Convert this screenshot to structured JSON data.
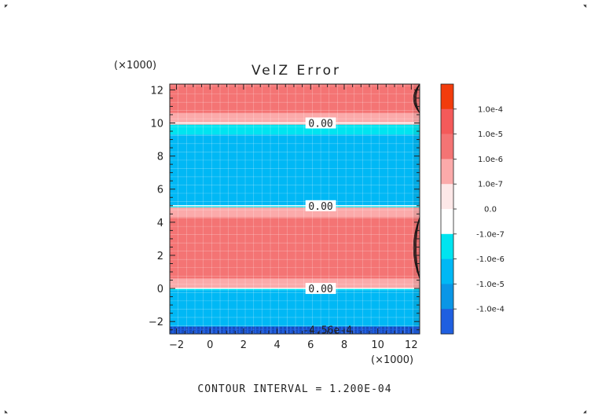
{
  "chart_data": {
    "type": "heatmap",
    "title": "VelZ Error",
    "x_multiplier_label": "(×1000)",
    "y_multiplier_label": "(×1000)",
    "xlim": [
      -2.4,
      12.5
    ],
    "ylim": [
      -2.75,
      12.35
    ],
    "x_ticks": [
      -2,
      0,
      2,
      4,
      6,
      8,
      10,
      12
    ],
    "y_ticks": [
      -2,
      0,
      2,
      4,
      6,
      8,
      10,
      12
    ],
    "x_tick_labels": [
      "−2",
      "0",
      "2",
      "4",
      "6",
      "8",
      "10",
      "12"
    ],
    "y_tick_labels": [
      "−2",
      "0",
      "2",
      "4",
      "6",
      "8",
      "10",
      "12"
    ],
    "grid": true,
    "bands": [
      {
        "y0": -2.75,
        "y1": -2.3,
        "color": "#1f5fe0"
      },
      {
        "y0": -2.3,
        "y1": -0.1,
        "color": "#00b8f5"
      },
      {
        "y0": -0.1,
        "y1": 0.0,
        "color": "#00e4f0"
      },
      {
        "y0": 0.0,
        "y1": 0.6,
        "color": "#fbaaaa"
      },
      {
        "y0": 0.6,
        "y1": 4.3,
        "color": "#f47474"
      },
      {
        "y0": 4.3,
        "y1": 4.9,
        "color": "#fbaaaa"
      },
      {
        "y0": 4.9,
        "y1": 5.0,
        "color": "#00e4f0"
      },
      {
        "y0": 5.0,
        "y1": 9.3,
        "color": "#00b8f5"
      },
      {
        "y0": 9.3,
        "y1": 9.9,
        "color": "#00e4f0"
      },
      {
        "y0": 9.9,
        "y1": 10.0,
        "color": "#fbaaaa"
      },
      {
        "y0": 10.0,
        "y1": 10.6,
        "color": "#fbaaaa"
      },
      {
        "y0": 10.6,
        "y1": 12.35,
        "color": "#f47474"
      }
    ],
    "contour_labels": [
      {
        "x": 6.6,
        "y": 10.0,
        "text": "0.00"
      },
      {
        "x": 6.6,
        "y": 5.0,
        "text": "0.00"
      },
      {
        "x": 6.6,
        "y": 0.0,
        "text": "0.00"
      },
      {
        "x": 7.0,
        "y": -2.5,
        "text": "-4.56e-4"
      }
    ],
    "colorbar": {
      "levels": [
        "1.0e-4",
        "1.0e-5",
        "1.0e-6",
        "1.0e-7",
        "0.0",
        "-1.0e-7",
        "-1.0e-6",
        "-1.0e-5",
        "-1.0e-4"
      ],
      "colors": [
        "#f23c0c",
        "#f45a5a",
        "#f47474",
        "#fbaaaa",
        "#fde8e8",
        "#ffffff",
        "#00e4f0",
        "#00b8f5",
        "#0a96e6",
        "#1f5fe0"
      ],
      "placement": "right"
    },
    "footer": "CONTOUR INTERVAL = 1.200E-04"
  }
}
